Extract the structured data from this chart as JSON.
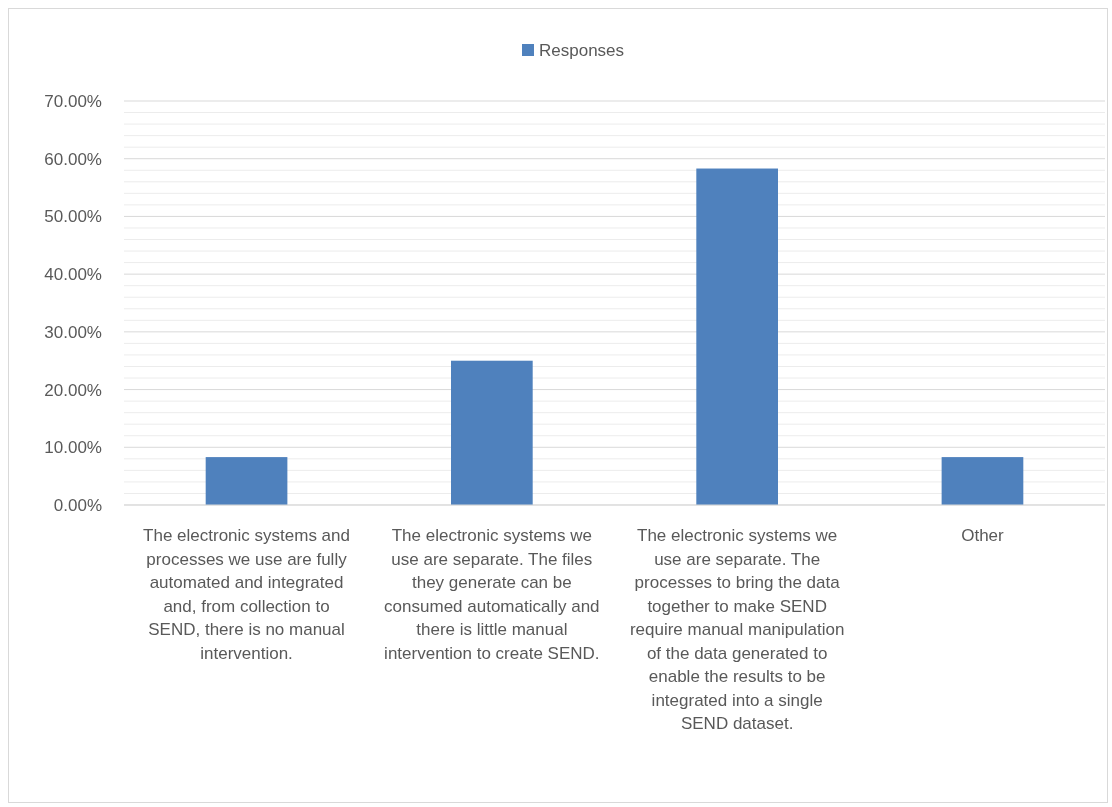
{
  "chart_data": {
    "type": "bar",
    "categories": [
      "The electronic systems and processes we use are fully automated and integrated and, from collection to SEND, there is no manual intervention.",
      "The electronic systems we use are separate. The files they generate can be consumed automatically and there is little manual intervention to create SEND.",
      "The electronic systems we use are separate. The processes to bring the data together to make SEND require manual manipulation of the data generated to enable the results to be integrated into a single SEND dataset.",
      "Other"
    ],
    "series": [
      {
        "name": "Responses",
        "color": "#4f81bd",
        "values": [
          8.3,
          25,
          58.3,
          8.3
        ]
      }
    ],
    "ylim": [
      0,
      70
    ],
    "yticks": [
      {
        "value": 0,
        "label": "0.00%"
      },
      {
        "value": 2,
        "label": null
      },
      {
        "value": 4,
        "label": null
      },
      {
        "value": 6,
        "label": null
      },
      {
        "value": 8,
        "label": null
      },
      {
        "value": 10,
        "label": "10.00%"
      },
      {
        "value": 12,
        "label": null
      },
      {
        "value": 14,
        "label": null
      },
      {
        "value": 16,
        "label": null
      },
      {
        "value": 18,
        "label": null
      },
      {
        "value": 20,
        "label": "20.00%"
      },
      {
        "value": 22,
        "label": null
      },
      {
        "value": 24,
        "label": null
      },
      {
        "value": 26,
        "label": null
      },
      {
        "value": 28,
        "label": null
      },
      {
        "value": 30,
        "label": "30.00%"
      },
      {
        "value": 32,
        "label": null
      },
      {
        "value": 34,
        "label": null
      },
      {
        "value": 36,
        "label": null
      },
      {
        "value": 38,
        "label": null
      },
      {
        "value": 40,
        "label": "40.00%"
      },
      {
        "value": 42,
        "label": null
      },
      {
        "value": 44,
        "label": null
      },
      {
        "value": 46,
        "label": null
      },
      {
        "value": 48,
        "label": null
      },
      {
        "value": 50,
        "label": "50.00%"
      },
      {
        "value": 52,
        "label": null
      },
      {
        "value": 54,
        "label": null
      },
      {
        "value": 56,
        "label": null
      },
      {
        "value": 58,
        "label": null
      },
      {
        "value": 60,
        "label": "60.00%"
      },
      {
        "value": 62,
        "label": null
      },
      {
        "value": 64,
        "label": null
      },
      {
        "value": 66,
        "label": null
      },
      {
        "value": 68,
        "label": null
      },
      {
        "value": 70,
        "label": "70.00%"
      }
    ],
    "grid": "y",
    "legend": "top"
  }
}
